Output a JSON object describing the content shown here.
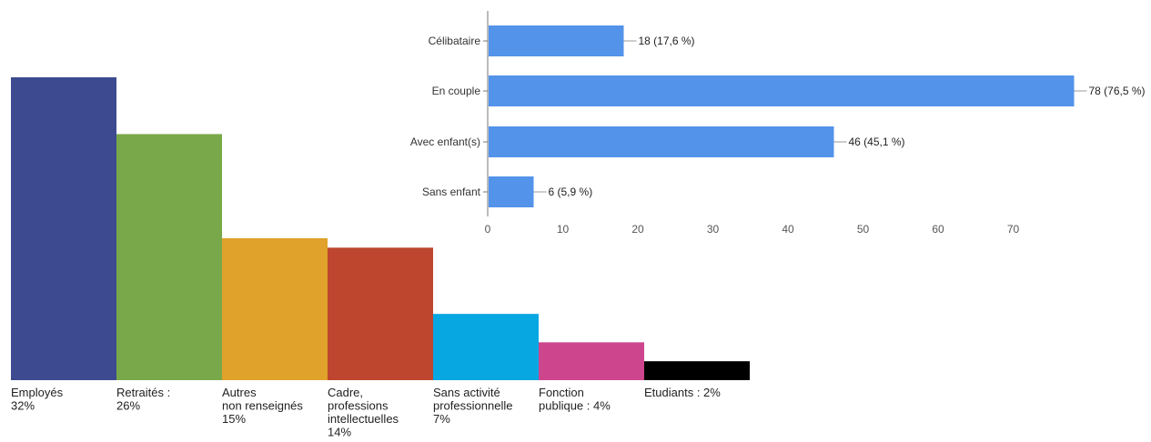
{
  "chart_data": [
    {
      "type": "bar",
      "orientation": "vertical",
      "title": "",
      "categories": [
        [
          "Employés",
          "32%"
        ],
        [
          "Retraités :",
          "26%"
        ],
        [
          "Autres",
          "non renseignés",
          "15%"
        ],
        [
          "Cadre,",
          "professions",
          "intellectuelles",
          "14%"
        ],
        [
          "Sans activité",
          "professionnelle",
          "7%"
        ],
        [
          "Fonction",
          "publique : 4%"
        ],
        [
          "Etudiants : 2%"
        ]
      ],
      "values": [
        32,
        26,
        15,
        14,
        7,
        4,
        2
      ],
      "colors": [
        "#3d4a8f",
        "#79a84a",
        "#e0a22a",
        "#be462e",
        "#07a7e2",
        "#cd468d",
        "#000000"
      ],
      "ylim": [
        0,
        32
      ],
      "grid": false,
      "legend": "none"
    },
    {
      "type": "bar",
      "orientation": "horizontal",
      "title": "",
      "categories": [
        "Célibataire",
        "En couple",
        "Avec enfant(s)",
        "Sans enfant"
      ],
      "values": [
        18,
        78,
        46,
        6
      ],
      "data_labels": [
        "18 (17,6 %)",
        "78 (76,5 %)",
        "46 (45,1 %)",
        "6 (5,9 %)"
      ],
      "color": "#5393ea",
      "xticks": [
        "0",
        "10",
        "20",
        "30",
        "40",
        "50",
        "60",
        "70"
      ],
      "xlim": [
        0,
        78
      ],
      "grid": false,
      "legend": "none"
    }
  ]
}
